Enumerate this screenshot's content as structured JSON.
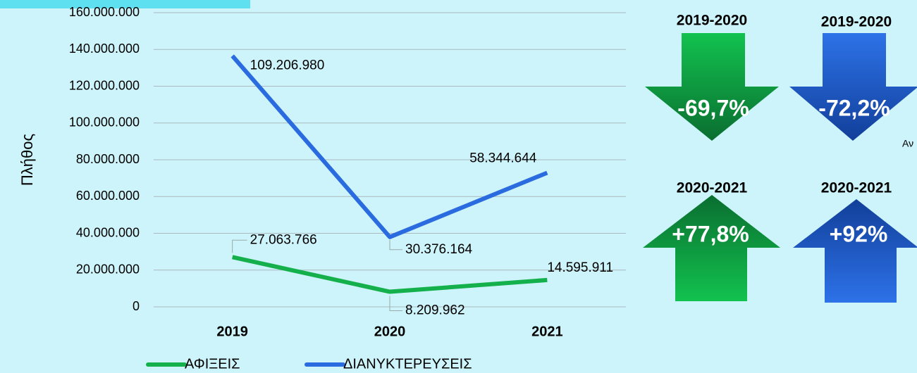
{
  "chart_data": {
    "type": "line",
    "ylabel": "Πλήθος",
    "categories": [
      "2019",
      "2020",
      "2021"
    ],
    "series": [
      {
        "name": "ΑΦΙΞΕΙΣ",
        "color": "#14b04c",
        "values": [
          27063766,
          8209962,
          14595911
        ],
        "value_labels": [
          "27.063.766",
          "8.209.962",
          "14.595.911"
        ]
      },
      {
        "name": "ΔΙΑΝΥΚΤΕΡΕΥΣΕΙΣ",
        "color": "#2a6be0",
        "axis": "y2",
        "values": [
          109206980,
          30376164,
          58344644
        ],
        "value_labels": [
          "109.206.980",
          "30.376.164",
          "58.344.644"
        ]
      }
    ],
    "ylim": [
      0,
      160000000
    ],
    "yticks": [
      0,
      {
        "value": 20000000,
        "label": "20.000.000"
      },
      {
        "value": 40000000,
        "label": "40.000.000"
      },
      {
        "value": 60000000,
        "label": "60.000.000"
      },
      {
        "value": 80000000,
        "label": "80.000.000"
      },
      {
        "value": 100000000,
        "label": "100.000.000"
      },
      {
        "value": 120000000,
        "label": "120.000.000"
      },
      {
        "value": 140000000,
        "label": "140.000.000"
      },
      {
        "value": 160000000,
        "label": "160.000.000"
      }
    ],
    "y2lim": [
      0,
      128000000
    ],
    "grid": true,
    "legend": "bottom"
  },
  "annotations": {
    "arrows": [
      {
        "title": "2019-2020",
        "label": "-69,7%"
      },
      {
        "title": "2019-2020",
        "label": "-72,2%"
      },
      {
        "title": "2020-2021",
        "label": "+77,8%"
      },
      {
        "title": "2020-2021",
        "label": "+92%"
      }
    ],
    "note": "Αν"
  }
}
